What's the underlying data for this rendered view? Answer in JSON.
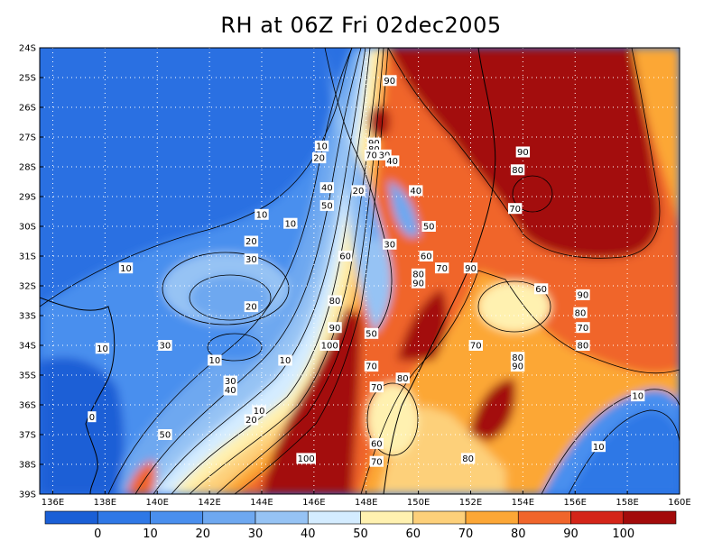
{
  "title": "RH at 06Z Fri 02dec2005",
  "chart_data": {
    "type": "heatmap",
    "variable": "RH",
    "time_label": "06Z Fri 02dec2005",
    "x_ticks": [
      "136E",
      "138E",
      "140E",
      "142E",
      "144E",
      "146E",
      "148E",
      "150E",
      "152E",
      "154E",
      "156E",
      "158E",
      "160E"
    ],
    "y_ticks": [
      "24S",
      "25S",
      "26S",
      "27S",
      "28S",
      "29S",
      "30S",
      "31S",
      "32S",
      "33S",
      "34S",
      "35S",
      "36S",
      "37S",
      "38S",
      "39S"
    ],
    "xlim": [
      135.5,
      160
    ],
    "ylim": [
      -39,
      -24
    ],
    "grid": true,
    "colorbar": {
      "labels": [
        "0",
        "10",
        "20",
        "30",
        "40",
        "50",
        "60",
        "70",
        "80",
        "90",
        "100"
      ],
      "colors": [
        "#1a5fd6",
        "#2f78e6",
        "#4a8fee",
        "#6ea8f0",
        "#96c3f4",
        "#d4ecff",
        "#fff1b0",
        "#fdd07a",
        "#fca736",
        "#f0652b",
        "#d42519",
        "#a30b0b"
      ]
    },
    "contour_labels": [
      {
        "text": "90",
        "lon": 148.9,
        "lat": -25.1
      },
      {
        "text": "90",
        "lon": 148.3,
        "lat": -27.2
      },
      {
        "text": "80",
        "lon": 148.3,
        "lat": -27.4
      },
      {
        "text": "70",
        "lon": 148.2,
        "lat": -27.6
      },
      {
        "text": "30",
        "lon": 148.7,
        "lat": -27.6
      },
      {
        "text": "40",
        "lon": 149.0,
        "lat": -27.8
      },
      {
        "text": "10",
        "lon": 146.3,
        "lat": -27.3
      },
      {
        "text": "20",
        "lon": 146.2,
        "lat": -27.7
      },
      {
        "text": "90",
        "lon": 154.0,
        "lat": -27.5
      },
      {
        "text": "80",
        "lon": 153.8,
        "lat": -28.1
      },
      {
        "text": "70",
        "lon": 153.7,
        "lat": -29.4
      },
      {
        "text": "40",
        "lon": 146.5,
        "lat": -28.7
      },
      {
        "text": "20",
        "lon": 147.7,
        "lat": -28.8
      },
      {
        "text": "40",
        "lon": 149.9,
        "lat": -28.8
      },
      {
        "text": "50",
        "lon": 146.5,
        "lat": -29.3
      },
      {
        "text": "10",
        "lon": 144.0,
        "lat": -29.6
      },
      {
        "text": "10",
        "lon": 145.1,
        "lat": -29.9
      },
      {
        "text": "50",
        "lon": 150.4,
        "lat": -30.0
      },
      {
        "text": "20",
        "lon": 143.6,
        "lat": -30.5
      },
      {
        "text": "30",
        "lon": 148.9,
        "lat": -30.6
      },
      {
        "text": "60",
        "lon": 150.3,
        "lat": -31.0
      },
      {
        "text": "60",
        "lon": 147.2,
        "lat": -31.0
      },
      {
        "text": "30",
        "lon": 143.6,
        "lat": -31.1
      },
      {
        "text": "10",
        "lon": 138.8,
        "lat": -31.4
      },
      {
        "text": "80",
        "lon": 150.0,
        "lat": -31.6
      },
      {
        "text": "70",
        "lon": 150.9,
        "lat": -31.4
      },
      {
        "text": "90",
        "lon": 152.0,
        "lat": -31.4
      },
      {
        "text": "90",
        "lon": 150.0,
        "lat": -31.9
      },
      {
        "text": "60",
        "lon": 154.7,
        "lat": -32.1
      },
      {
        "text": "90",
        "lon": 156.3,
        "lat": -32.3
      },
      {
        "text": "80",
        "lon": 146.8,
        "lat": -32.5
      },
      {
        "text": "20",
        "lon": 143.6,
        "lat": -32.7
      },
      {
        "text": "80",
        "lon": 156.2,
        "lat": -32.9
      },
      {
        "text": "90",
        "lon": 146.8,
        "lat": -33.4
      },
      {
        "text": "70",
        "lon": 156.3,
        "lat": -33.4
      },
      {
        "text": "50",
        "lon": 148.2,
        "lat": -33.6
      },
      {
        "text": "100",
        "lon": 146.6,
        "lat": -34.0
      },
      {
        "text": "30",
        "lon": 140.3,
        "lat": -34.0
      },
      {
        "text": "10",
        "lon": 137.9,
        "lat": -34.1
      },
      {
        "text": "70",
        "lon": 152.2,
        "lat": -34.0
      },
      {
        "text": "80",
        "lon": 156.3,
        "lat": -34.0
      },
      {
        "text": "80",
        "lon": 153.8,
        "lat": -34.4
      },
      {
        "text": "90",
        "lon": 153.8,
        "lat": -34.7
      },
      {
        "text": "10",
        "lon": 142.2,
        "lat": -34.5
      },
      {
        "text": "10",
        "lon": 144.9,
        "lat": -34.5
      },
      {
        "text": "70",
        "lon": 148.2,
        "lat": -34.7
      },
      {
        "text": "80",
        "lon": 149.4,
        "lat": -35.1
      },
      {
        "text": "30",
        "lon": 142.8,
        "lat": -35.2
      },
      {
        "text": "40",
        "lon": 142.8,
        "lat": -35.5
      },
      {
        "text": "70",
        "lon": 148.4,
        "lat": -35.4
      },
      {
        "text": "10",
        "lon": 158.4,
        "lat": -35.7
      },
      {
        "text": "10",
        "lon": 143.9,
        "lat": -36.2
      },
      {
        "text": "20",
        "lon": 143.6,
        "lat": -36.5
      },
      {
        "text": "0",
        "lon": 137.5,
        "lat": -36.4
      },
      {
        "text": "50",
        "lon": 140.3,
        "lat": -37.0
      },
      {
        "text": "60",
        "lon": 148.4,
        "lat": -37.3
      },
      {
        "text": "10",
        "lon": 156.9,
        "lat": -37.4
      },
      {
        "text": "100",
        "lon": 145.7,
        "lat": -37.8
      },
      {
        "text": "80",
        "lon": 151.9,
        "lat": -37.8
      },
      {
        "text": "70",
        "lon": 148.4,
        "lat": -37.9
      }
    ]
  }
}
